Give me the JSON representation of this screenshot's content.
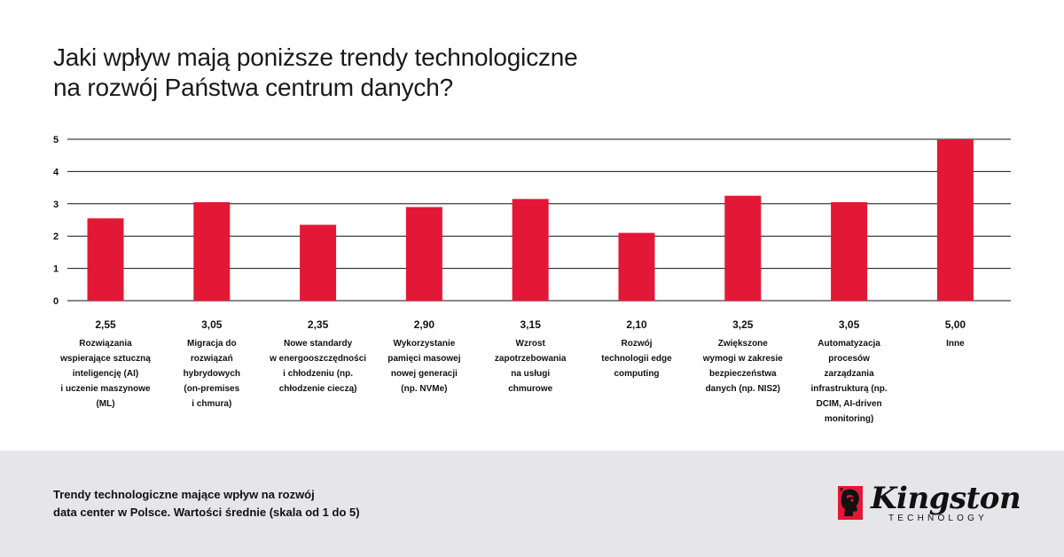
{
  "title": {
    "line1": "Jaki wpływ mają poniższe trendy technologiczne",
    "line2": "na rozwój Państwa centrum danych?"
  },
  "footer": {
    "line1": "Trendy technologiczne mające wpływ na rozwój",
    "line2": "data center w Polsce. Wartości średnie (skala od 1 do 5)"
  },
  "logo": {
    "wordmark": "Kingston",
    "subtitle": "TECHNOLOGY",
    "icon": "kingston-head-logo-icon",
    "brand_color": "#e31837"
  },
  "chart_data": {
    "type": "bar",
    "ylim": [
      0,
      5
    ],
    "yticks": [
      "0",
      "1",
      "2",
      "3",
      "4",
      "5"
    ],
    "grid": true,
    "bar_color": "#e31837",
    "categories": [
      [
        "Rozwiązania",
        "wspierające sztuczną",
        "inteligencję (AI)",
        "i uczenie maszynowe",
        "(ML)"
      ],
      [
        "Migracja do",
        "rozwiązań",
        "hybrydowych",
        "(on-premises",
        "i chmura)"
      ],
      [
        "Nowe standardy",
        "w energooszczędności",
        "i chłodzeniu (np.",
        "chłodzenie cieczą)"
      ],
      [
        "Wykorzystanie",
        "pamięci masowej",
        "nowej generacji",
        "(np. NVMe)"
      ],
      [
        "Wzrost",
        "zapotrzebowania",
        "na usługi",
        "chmurowe"
      ],
      [
        "Rozwój",
        "technologii edge",
        "computing"
      ],
      [
        "Zwiększone",
        "wymogi w zakresie",
        "bezpieczeństwa",
        "danych (np. NIS2)"
      ],
      [
        "Automatyzacja",
        "procesów",
        "zarządzania",
        "infrastrukturą (np.",
        "DCIM, AI-driven",
        "monitoring)"
      ],
      [
        "Inne"
      ]
    ],
    "values": [
      2.55,
      3.05,
      2.35,
      2.9,
      3.15,
      2.1,
      3.25,
      3.05,
      5.0
    ],
    "value_labels": [
      "2,55",
      "3,05",
      "2,35",
      "2,90",
      "3,15",
      "2,10",
      "3,25",
      "3,05",
      "5,00"
    ]
  }
}
